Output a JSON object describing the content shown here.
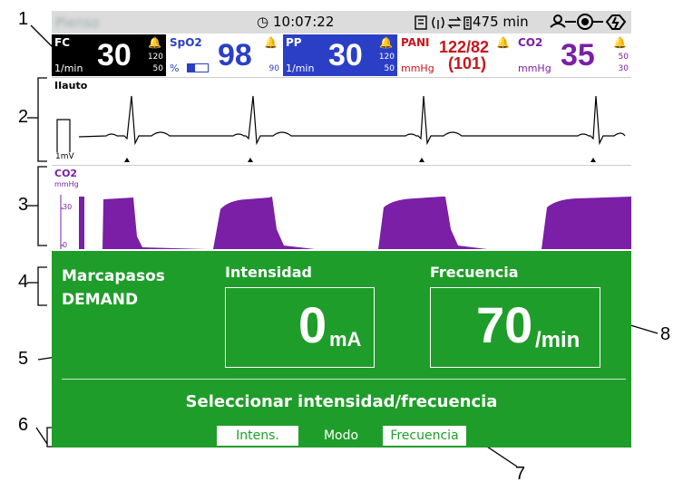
{
  "callouts": [
    "1",
    "2",
    "3",
    "4",
    "5",
    "6",
    "7",
    "8"
  ],
  "status_bar": {
    "patient_name": "Pienso",
    "clock_icon": "clock-icon",
    "time": "10:07:22",
    "battery_time": "475 min"
  },
  "tiles": {
    "fc": {
      "label": "FC",
      "value": "30",
      "unit": "1/min",
      "lim_hi": "120",
      "lim_lo": "50"
    },
    "spo2": {
      "label": "SpO2",
      "value": "98",
      "unit": "%",
      "lim_lo": "90"
    },
    "pp": {
      "label": "PP",
      "value": "30",
      "unit": "1/min",
      "lim_hi": "120",
      "lim_lo": "50"
    },
    "pani": {
      "label": "PANI",
      "value": "122/82",
      "value2": "(101)",
      "unit": "mmHg"
    },
    "co2": {
      "label": "CO2",
      "value": "35",
      "unit": "mmHg",
      "lim_hi": "50",
      "lim_lo": "30"
    }
  },
  "ecg": {
    "lead": "IIauto",
    "cal": "1mV"
  },
  "co2_wave": {
    "label": "CO2",
    "unit": "mmHg",
    "tick_30": "30",
    "tick_0": "0"
  },
  "pacer": {
    "title_line1": "Marcapasos",
    "title_line2": "DEMAND",
    "intensity_label": "Intensidad",
    "intensity_value": "0",
    "intensity_unit": "mA",
    "frequency_label": "Frecuencia",
    "frequency_value": "70",
    "frequency_unit": "/min",
    "instruction": "Seleccionar intensidad/frecuencia",
    "softkeys": [
      "Intens.",
      "Modo",
      "Frecuencia"
    ]
  },
  "colors": {
    "green": "#1f9d2a",
    "purple": "#7a1fa6",
    "blue": "#2b3fc6",
    "red": "#c8151b",
    "black": "#000000"
  }
}
